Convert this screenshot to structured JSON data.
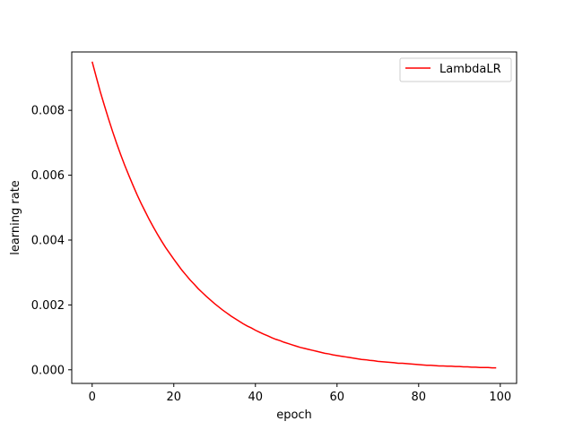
{
  "chart_data": {
    "type": "line",
    "xlabel": "epoch",
    "ylabel": "learning rate",
    "xlim": [
      -5,
      104
    ],
    "ylim": [
      -0.00042,
      0.0098
    ],
    "xticks": [
      0,
      20,
      40,
      60,
      80,
      100
    ],
    "yticks": [
      0.0,
      0.002,
      0.004,
      0.006,
      0.008
    ],
    "xtick_labels": [
      "0",
      "20",
      "40",
      "60",
      "80",
      "100"
    ],
    "ytick_labels": [
      "0.000",
      "0.002",
      "0.004",
      "0.006",
      "0.008"
    ],
    "grid": false,
    "legend_position": "top-right",
    "series": [
      {
        "name": "LambdaLR",
        "color": "#ff0000",
        "x": [
          0,
          1,
          2,
          3,
          4,
          5,
          6,
          7,
          8,
          9,
          10,
          11,
          12,
          13,
          14,
          15,
          16,
          17,
          18,
          19,
          20,
          21,
          22,
          23,
          24,
          25,
          26,
          27,
          28,
          29,
          30,
          31,
          32,
          33,
          34,
          35,
          36,
          37,
          38,
          39,
          40,
          41,
          42,
          43,
          44,
          45,
          46,
          47,
          48,
          49,
          50,
          51,
          52,
          53,
          54,
          55,
          56,
          57,
          58,
          59,
          60,
          61,
          62,
          63,
          64,
          65,
          66,
          67,
          68,
          69,
          70,
          71,
          72,
          73,
          74,
          75,
          76,
          77,
          78,
          79,
          80,
          81,
          82,
          83,
          84,
          85,
          86,
          87,
          88,
          89,
          90,
          91,
          92,
          93,
          94,
          95,
          96,
          97,
          98,
          99
        ],
        "y": [
          0.0095,
          0.00903,
          0.00857,
          0.00815,
          0.00774,
          0.00735,
          0.00698,
          0.00663,
          0.0063,
          0.00599,
          0.00569,
          0.0054,
          0.00513,
          0.00488,
          0.00463,
          0.0044,
          0.00418,
          0.00397,
          0.00377,
          0.00359,
          0.00341,
          0.00324,
          0.00307,
          0.00292,
          0.00277,
          0.00264,
          0.0025,
          0.00238,
          0.00226,
          0.00215,
          0.00204,
          0.00194,
          0.00184,
          0.00175,
          0.00166,
          0.00158,
          0.0015,
          0.00142,
          0.00135,
          0.00129,
          0.00122,
          0.00116,
          0.0011,
          0.00105,
          0.00099,
          0.00094,
          0.0009,
          0.00085,
          0.00081,
          0.00077,
          0.00073,
          0.00069,
          0.00066,
          0.00063,
          0.0006,
          0.00057,
          0.00054,
          0.00051,
          0.00049,
          0.00046,
          0.00044,
          0.00042,
          0.0004,
          0.00038,
          0.00036,
          0.00034,
          0.00032,
          0.00031,
          0.00029,
          0.00028,
          0.00026,
          0.00025,
          0.00024,
          0.00023,
          0.00022,
          0.0002,
          0.0002,
          0.00019,
          0.00018,
          0.00017,
          0.00016,
          0.00015,
          0.00014,
          0.00014,
          0.00013,
          0.00012,
          0.00012,
          0.00011,
          0.00011,
          0.0001,
          0.0001,
          9e-05,
          9e-05,
          8e-05,
          8e-05,
          7e-05,
          7e-05,
          7e-05,
          6e-05,
          6e-05
        ]
      }
    ]
  }
}
